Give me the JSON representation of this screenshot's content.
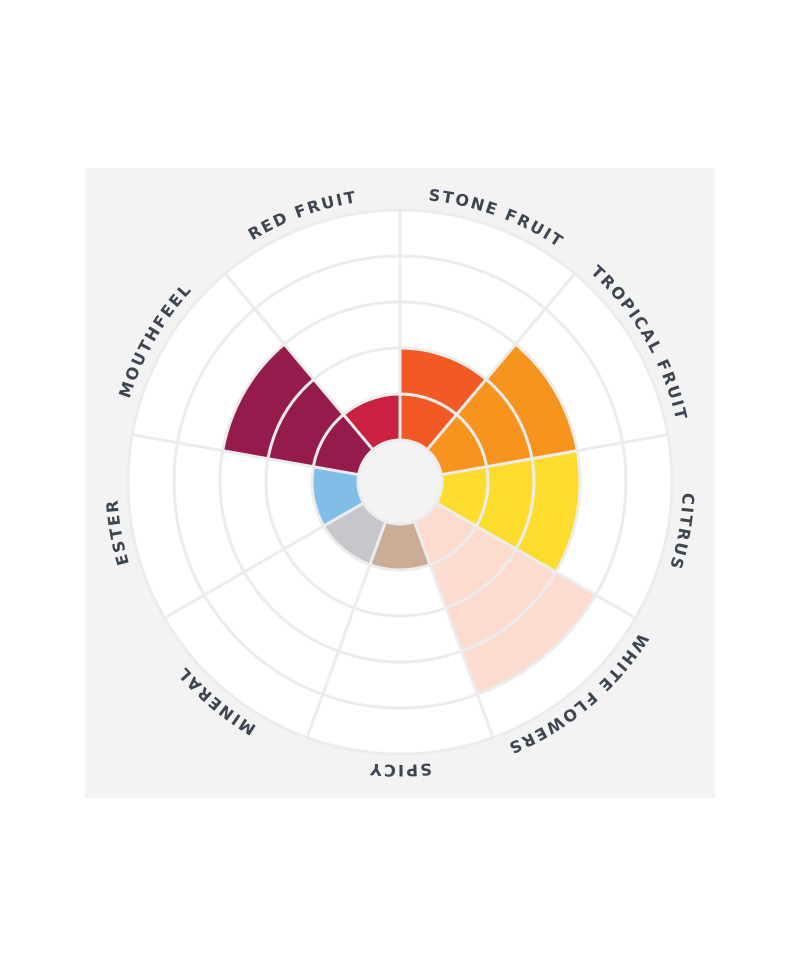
{
  "chart_data": {
    "type": "polar-area",
    "categories": [
      "STONE FRUIT",
      "TROPICAL FRUIT",
      "CITRUS",
      "WHITE FLOWERS",
      "SPICY",
      "MINERAL",
      "ESTER",
      "MOUTHFEEL",
      "RED FRUIT"
    ],
    "values": [
      2,
      3,
      3,
      4,
      1,
      1,
      1,
      3,
      1
    ],
    "colors": [
      "#f15a24",
      "#f7941d",
      "#fcdc2c",
      "#fcdccf",
      "#c9ad96",
      "#c5c7ca",
      "#80bee8",
      "#951b4c",
      "#c9213f"
    ],
    "rlim": [
      0,
      5
    ]
  }
}
